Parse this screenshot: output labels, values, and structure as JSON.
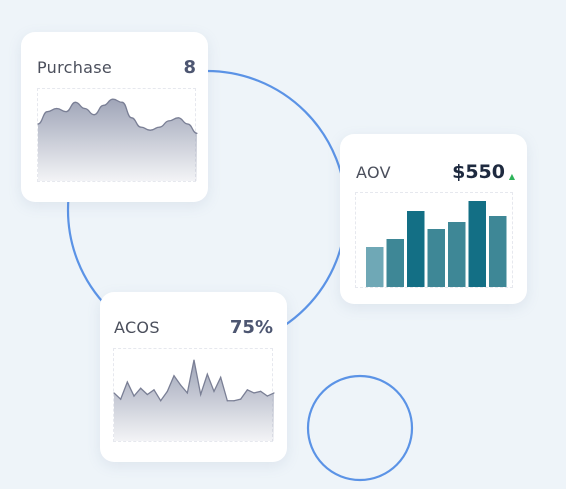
{
  "cards": {
    "purchase": {
      "label": "Purchase",
      "value": "8"
    },
    "aov": {
      "label": "AOV",
      "value": "$550",
      "trend_icon": "up-triangle-icon"
    },
    "acos": {
      "label": "ACOS",
      "value": "75%"
    }
  },
  "colors": {
    "background": "#eef4f9",
    "accent_blue": "#5b93e6",
    "area_stroke": "#7a7f95",
    "area_fill_top": "#9aa0b4",
    "bar_light": "#6fa8b6",
    "bar_mid": "#3e8796",
    "bar_dark": "#136f85",
    "trend_up": "#2eb35a"
  },
  "chart_data": [
    {
      "type": "area",
      "values": [
        10,
        14,
        15,
        14,
        17,
        15,
        13,
        16,
        18,
        17,
        12,
        9,
        8,
        9,
        11,
        12,
        10,
        7
      ]
    },
    {
      "type": "bar",
      "values": [
        40,
        48,
        76,
        58,
        65,
        86,
        71
      ]
    },
    {
      "type": "area",
      "values": [
        9,
        5,
        16,
        7,
        12,
        8,
        11,
        4,
        10,
        20,
        14,
        9,
        30,
        8,
        21,
        10,
        19,
        4,
        4,
        5,
        11,
        9,
        10,
        7,
        9
      ]
    }
  ]
}
